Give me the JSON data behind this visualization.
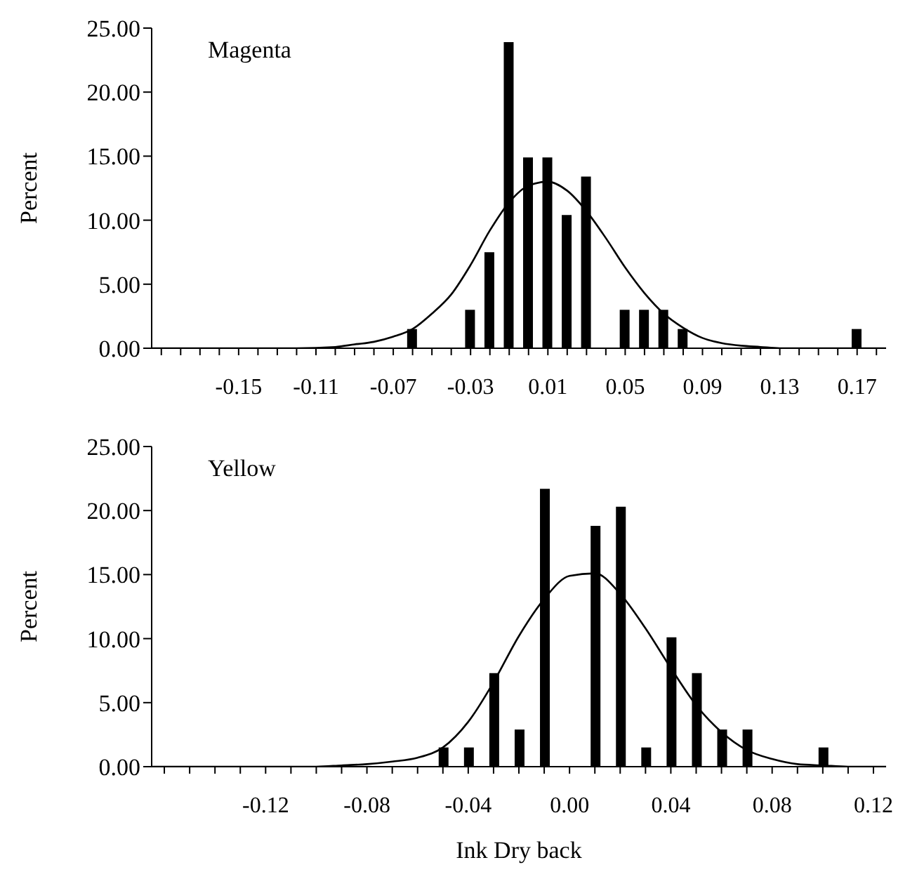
{
  "chart_data": [
    {
      "type": "bar",
      "ylabel": "Percent",
      "annotations": [
        "Magenta"
      ],
      "xlim": [
        -0.195,
        0.185
      ],
      "xticks": [
        {
          "value": -0.19,
          "label": null
        },
        {
          "value": -0.18,
          "label": null
        },
        {
          "value": -0.17,
          "label": null
        },
        {
          "value": -0.16,
          "label": null
        },
        -0.15,
        {
          "value": -0.14,
          "label": null
        },
        {
          "value": -0.13,
          "label": null
        },
        {
          "value": -0.12,
          "label": null
        },
        -0.11,
        {
          "value": -0.1,
          "label": null
        },
        {
          "value": -0.09,
          "label": null
        },
        {
          "value": -0.08,
          "label": null
        },
        -0.07,
        {
          "value": -0.06,
          "label": null
        },
        {
          "value": -0.05,
          "label": null
        },
        {
          "value": -0.04,
          "label": null
        },
        -0.03,
        {
          "value": -0.02,
          "label": null
        },
        {
          "value": -0.01,
          "label": null
        },
        {
          "value": 0,
          "label": null
        },
        0.01,
        {
          "value": 0.02,
          "label": null
        },
        {
          "value": 0.03,
          "label": null
        },
        {
          "value": 0.04,
          "label": null
        },
        0.05,
        {
          "value": 0.06,
          "label": null
        },
        {
          "value": 0.07,
          "label": null
        },
        {
          "value": 0.08,
          "label": null
        },
        0.09,
        {
          "value": 0.1,
          "label": null
        },
        {
          "value": 0.11,
          "label": null
        },
        {
          "value": 0.12,
          "label": null
        },
        0.13,
        {
          "value": 0.14,
          "label": null
        },
        {
          "value": 0.15,
          "label": null
        },
        {
          "value": 0.16,
          "label": null
        },
        0.17,
        {
          "value": 0.18,
          "label": null
        }
      ],
      "ylim": [
        0,
        25
      ],
      "yticks": [
        {
          "value": 0,
          "label": "0.00"
        },
        {
          "value": 5,
          "label": "5.00"
        },
        {
          "value": 10,
          "label": "10.00"
        },
        {
          "value": 15,
          "label": "15.00"
        },
        {
          "value": 20,
          "label": "20.00"
        },
        {
          "value": 25,
          "label": "25.00"
        }
      ],
      "series": [
        {
          "color": "#000000",
          "x": [
            -0.06,
            -0.03,
            -0.02,
            -0.01,
            0,
            0.01,
            0.02,
            0.03,
            0.05,
            0.06,
            0.07,
            0.08,
            0.17
          ],
          "values": [
            1.5,
            3.0,
            7.5,
            23.9,
            14.9,
            14.9,
            10.4,
            13.4,
            3.0,
            3.0,
            3.0,
            1.5,
            1.5
          ]
        },
        {
          "type": "line",
          "color": "#000000",
          "marker": "none",
          "x": [
            -0.195,
            -0.12,
            -0.1,
            -0.09,
            -0.08,
            -0.07,
            -0.06,
            -0.05,
            -0.04,
            -0.03,
            -0.02,
            -0.01,
            0,
            0.01,
            0.02,
            0.03,
            0.04,
            0.05,
            0.06,
            0.07,
            0.08,
            0.09,
            0.1,
            0.11,
            0.12,
            0.13,
            0.185
          ],
          "values": [
            0,
            0,
            0.1,
            0.3,
            0.5,
            0.9,
            1.5,
            2.7,
            4.2,
            6.5,
            9.2,
            11.4,
            12.7,
            13.0,
            12.3,
            10.7,
            8.6,
            6.3,
            4.3,
            2.7,
            1.6,
            0.8,
            0.4,
            0.2,
            0.1,
            0,
            0
          ]
        }
      ]
    },
    {
      "type": "bar",
      "xlabel": "Ink Dry back",
      "ylabel": "Percent",
      "annotations": [
        "Yellow"
      ],
      "xlim": [
        -0.165,
        0.125
      ],
      "xticks": [
        {
          "value": -0.16,
          "label": null
        },
        {
          "value": -0.15,
          "label": null
        },
        {
          "value": -0.14,
          "label": null
        },
        {
          "value": -0.13,
          "label": null
        },
        -0.12,
        {
          "value": -0.11,
          "label": null
        },
        {
          "value": -0.1,
          "label": null
        },
        {
          "value": -0.09,
          "label": null
        },
        -0.08,
        {
          "value": -0.07,
          "label": null
        },
        {
          "value": -0.06,
          "label": null
        },
        {
          "value": -0.05,
          "label": null
        },
        -0.04,
        {
          "value": -0.03,
          "label": null
        },
        {
          "value": -0.02,
          "label": null
        },
        {
          "value": -0.01,
          "label": null
        },
        {
          "value": 0,
          "label": "0.00"
        },
        {
          "value": 0.01,
          "label": null
        },
        {
          "value": 0.02,
          "label": null
        },
        {
          "value": 0.03,
          "label": null
        },
        0.04,
        {
          "value": 0.05,
          "label": null
        },
        {
          "value": 0.06,
          "label": null
        },
        {
          "value": 0.07,
          "label": null
        },
        0.08,
        {
          "value": 0.09,
          "label": null
        },
        {
          "value": 0.1,
          "label": null
        },
        {
          "value": 0.11,
          "label": null
        },
        0.12
      ],
      "ylim": [
        0,
        25
      ],
      "yticks": [
        {
          "value": 0,
          "label": "0.00"
        },
        {
          "value": 5,
          "label": "5.00"
        },
        {
          "value": 10,
          "label": "10.00"
        },
        {
          "value": 15,
          "label": "15.00"
        },
        {
          "value": 20,
          "label": "20.00"
        },
        {
          "value": 25,
          "label": "25.00"
        }
      ],
      "series": [
        {
          "color": "#000000",
          "x": [
            -0.05,
            -0.04,
            -0.03,
            -0.02,
            -0.01,
            0.01,
            0.02,
            0.03,
            0.04,
            0.05,
            0.06,
            0.07,
            0.1
          ],
          "values": [
            1.5,
            1.5,
            7.3,
            2.9,
            21.7,
            18.8,
            20.3,
            1.5,
            10.1,
            7.3,
            2.9,
            2.9,
            1.5
          ]
        },
        {
          "type": "line",
          "color": "#000000",
          "marker": "none",
          "x": [
            -0.165,
            -0.1,
            -0.09,
            -0.08,
            -0.07,
            -0.06,
            -0.05,
            -0.04,
            -0.03,
            -0.02,
            -0.01,
            0,
            0.01,
            0.02,
            0.03,
            0.04,
            0.05,
            0.06,
            0.07,
            0.08,
            0.09,
            0.1,
            0.11,
            0.125
          ],
          "values": [
            0,
            0,
            0.1,
            0.2,
            0.4,
            0.7,
            1.5,
            3.5,
            6.6,
            10.2,
            13.1,
            14.9,
            15.1,
            13.5,
            10.8,
            7.7,
            4.8,
            2.7,
            1.3,
            0.6,
            0.2,
            0.1,
            0,
            0
          ]
        }
      ]
    }
  ]
}
